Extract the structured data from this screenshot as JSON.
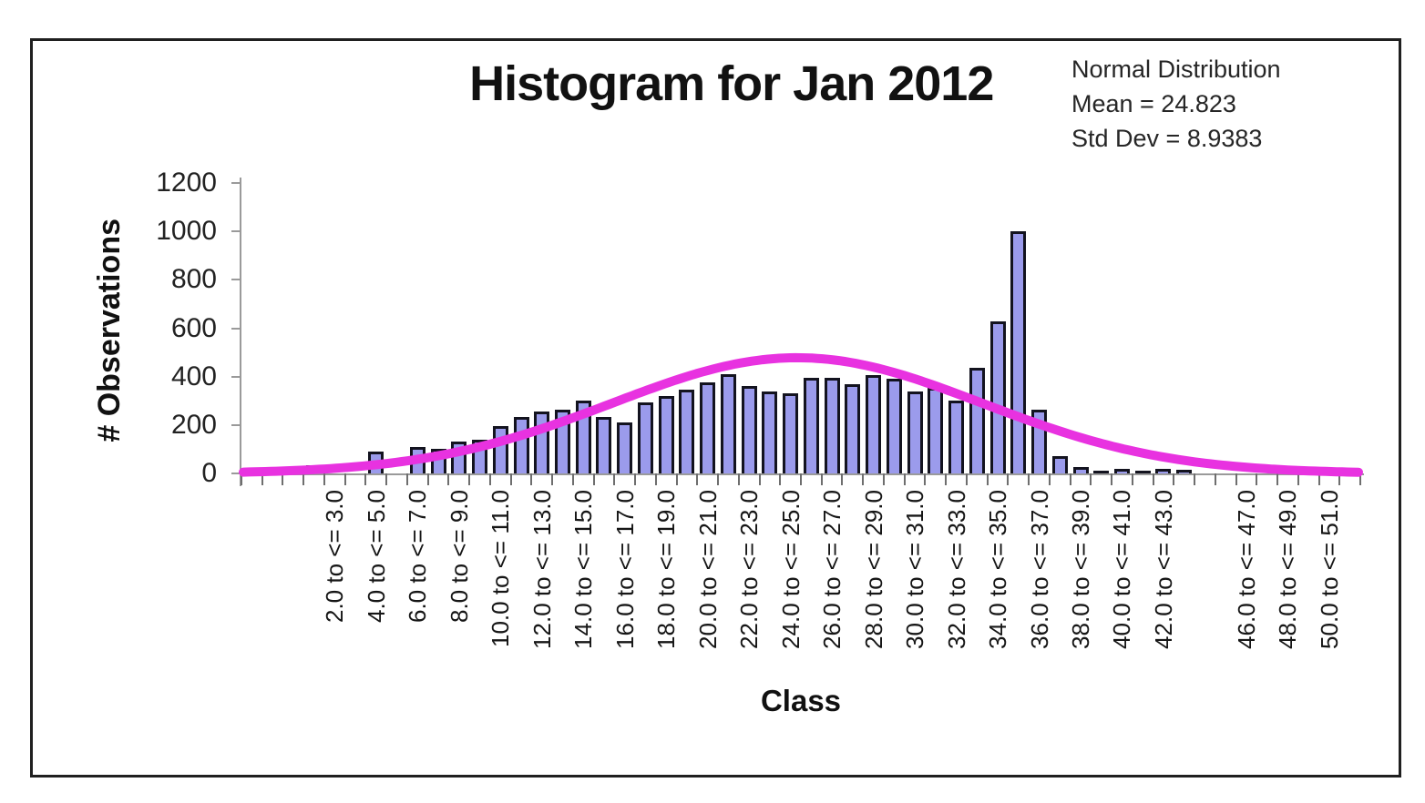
{
  "chart_data": {
    "type": "bar",
    "title": "Histogram for Jan 2012",
    "xlabel": "Class",
    "ylabel": "# Observations",
    "ylim": [
      0,
      1200
    ],
    "y_ticks": [
      0,
      200,
      400,
      600,
      800,
      1000,
      1200
    ],
    "annotation": {
      "line1": "Normal Distribution",
      "line2": "Mean = 24.823",
      "line3": "Std Dev = 8.9383"
    },
    "normal_curve": {
      "mean": 24.823,
      "std_dev": 8.9383,
      "peak_height": 478,
      "color": "#e832e0"
    },
    "layout": {
      "lead_empty_slots": 3,
      "trail_empty_slots": 1,
      "legend_position": "top-right",
      "grid": false
    },
    "colors": {
      "bar_fill": "#9b9bec",
      "bar_border": "#13131f",
      "axis": "#9a9a9a"
    },
    "bins": [
      {
        "label": "",
        "value": 35
      },
      {
        "label": "2.0 to <= 3.0",
        "value": 0
      },
      {
        "label": "",
        "value": 0
      },
      {
        "label": "4.0 to <= 5.0",
        "value": 90
      },
      {
        "label": "",
        "value": 0
      },
      {
        "label": "6.0 to <= 7.0",
        "value": 110
      },
      {
        "label": "",
        "value": 100
      },
      {
        "label": "8.0 to <= 9.0",
        "value": 130
      },
      {
        "label": "",
        "value": 140
      },
      {
        "label": "10.0 to <= 11.0",
        "value": 195
      },
      {
        "label": "",
        "value": 235
      },
      {
        "label": "12.0 to <= 13.0",
        "value": 255
      },
      {
        "label": "",
        "value": 265
      },
      {
        "label": "14.0 to <= 15.0",
        "value": 300
      },
      {
        "label": "",
        "value": 235
      },
      {
        "label": "16.0 to <= 17.0",
        "value": 210
      },
      {
        "label": "",
        "value": 295
      },
      {
        "label": "18.0 to <= 19.0",
        "value": 320
      },
      {
        "label": "",
        "value": 345
      },
      {
        "label": "20.0 to <= 21.0",
        "value": 375
      },
      {
        "label": "",
        "value": 410
      },
      {
        "label": "22.0 to <= 23.0",
        "value": 360
      },
      {
        "label": "",
        "value": 340
      },
      {
        "label": "24.0 to <= 25.0",
        "value": 330
      },
      {
        "label": "",
        "value": 395
      },
      {
        "label": "26.0 to <= 27.0",
        "value": 395
      },
      {
        "label": "",
        "value": 370
      },
      {
        "label": "28.0 to <= 29.0",
        "value": 405
      },
      {
        "label": "",
        "value": 390
      },
      {
        "label": "30.0 to <= 31.0",
        "value": 340
      },
      {
        "label": "",
        "value": 355
      },
      {
        "label": "32.0 to <= 33.0",
        "value": 300
      },
      {
        "label": "",
        "value": 435
      },
      {
        "label": "34.0 to <= 35.0",
        "value": 630
      },
      {
        "label": "",
        "value": 1000
      },
      {
        "label": "36.0 to <= 37.0",
        "value": 265
      },
      {
        "label": "",
        "value": 70
      },
      {
        "label": "38.0 to <= 39.0",
        "value": 25
      },
      {
        "label": "",
        "value": 10
      },
      {
        "label": "40.0 to <= 41.0",
        "value": 20
      },
      {
        "label": "",
        "value": 10
      },
      {
        "label": "42.0 to <= 43.0",
        "value": 20
      },
      {
        "label": "",
        "value": 15
      },
      {
        "label": "",
        "value": 0
      },
      {
        "label": "",
        "value": 0
      },
      {
        "label": "46.0 to <= 47.0",
        "value": 0
      },
      {
        "label": "",
        "value": 0
      },
      {
        "label": "48.0 to <= 49.0",
        "value": 0
      },
      {
        "label": "",
        "value": 0
      },
      {
        "label": "50.0 to <= 51.0",
        "value": 0
      }
    ]
  }
}
